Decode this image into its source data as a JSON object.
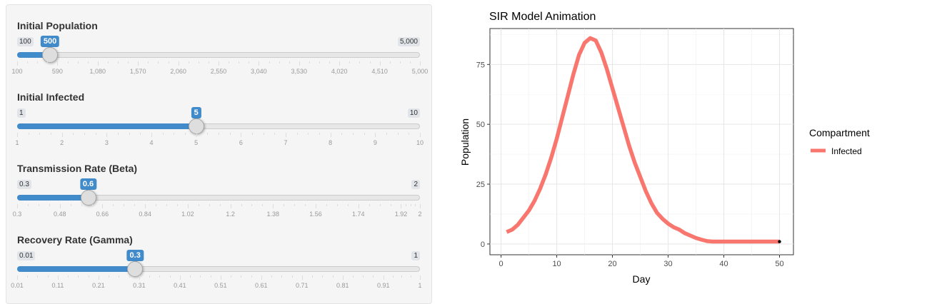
{
  "controls": {
    "sliders": [
      {
        "id": "initial-population",
        "label": "Initial Population",
        "min_label": "100",
        "max_label": "5,000",
        "min": 100,
        "max": 5000,
        "value": 500,
        "value_label": "500",
        "ticks": [
          "100",
          "590",
          "1,080",
          "1,570",
          "2,060",
          "2,550",
          "3,040",
          "3,530",
          "4,020",
          "4,510",
          "5,000"
        ]
      },
      {
        "id": "initial-infected",
        "label": "Initial Infected",
        "min_label": "1",
        "max_label": "10",
        "min": 1,
        "max": 10,
        "value": 5,
        "value_label": "5",
        "ticks": [
          "1",
          "2",
          "3",
          "4",
          "5",
          "6",
          "7",
          "8",
          "9",
          "10"
        ]
      },
      {
        "id": "transmission-rate",
        "label": "Transmission Rate (Beta)",
        "min_label": "0.3",
        "max_label": "2",
        "min": 0.3,
        "max": 2,
        "value": 0.6,
        "value_label": "0.6",
        "ticks": [
          "0.3",
          "0.48",
          "0.66",
          "0.84",
          "1.02",
          "1.2",
          "1.38",
          "1.56",
          "1.74",
          "1.92",
          "2"
        ]
      },
      {
        "id": "recovery-rate",
        "label": "Recovery Rate (Gamma)",
        "min_label": "0.01",
        "max_label": "1",
        "min": 0.01,
        "max": 1,
        "value": 0.3,
        "value_label": "0.3",
        "ticks": [
          "0.01",
          "0.11",
          "0.21",
          "0.31",
          "0.41",
          "0.51",
          "0.61",
          "0.71",
          "0.81",
          "0.91",
          "1"
        ]
      }
    ]
  },
  "chart_data": {
    "type": "line",
    "title": "SIR Model Animation",
    "xlabel": "Day",
    "ylabel": "Population",
    "xlim": [
      -2,
      52.5
    ],
    "ylim": [
      -4.5,
      90
    ],
    "x_ticks": [
      0,
      10,
      20,
      30,
      40,
      50
    ],
    "y_ticks": [
      0,
      25,
      50,
      75
    ],
    "grid": true,
    "legend": {
      "title": "Compartment",
      "placement": "right"
    },
    "series": [
      {
        "name": "Infected",
        "color": "#f8766d",
        "x": [
          1,
          2,
          3,
          4,
          5,
          6,
          7,
          8,
          9,
          10,
          11,
          12,
          13,
          14,
          15,
          16,
          17,
          18,
          19,
          20,
          21,
          22,
          23,
          24,
          25,
          26,
          27,
          28,
          29,
          30,
          31,
          32,
          33,
          34,
          35,
          36,
          37,
          38,
          39,
          40,
          41,
          42,
          43,
          44,
          45,
          46,
          47,
          48,
          49,
          50
        ],
        "y": [
          5,
          6,
          8,
          11,
          14,
          18,
          23,
          29,
          36,
          44,
          53,
          62,
          71,
          79,
          84,
          86,
          85,
          80,
          73,
          65,
          57,
          49,
          41,
          34,
          28,
          22,
          17,
          13,
          10.5,
          8.5,
          7,
          6,
          4.5,
          3.5,
          2.5,
          1.8,
          1.2,
          1,
          1,
          1,
          1,
          1,
          1,
          1,
          1,
          1,
          1,
          1,
          1,
          1
        ]
      }
    ],
    "end_point": {
      "x": 50,
      "y": 1
    }
  }
}
